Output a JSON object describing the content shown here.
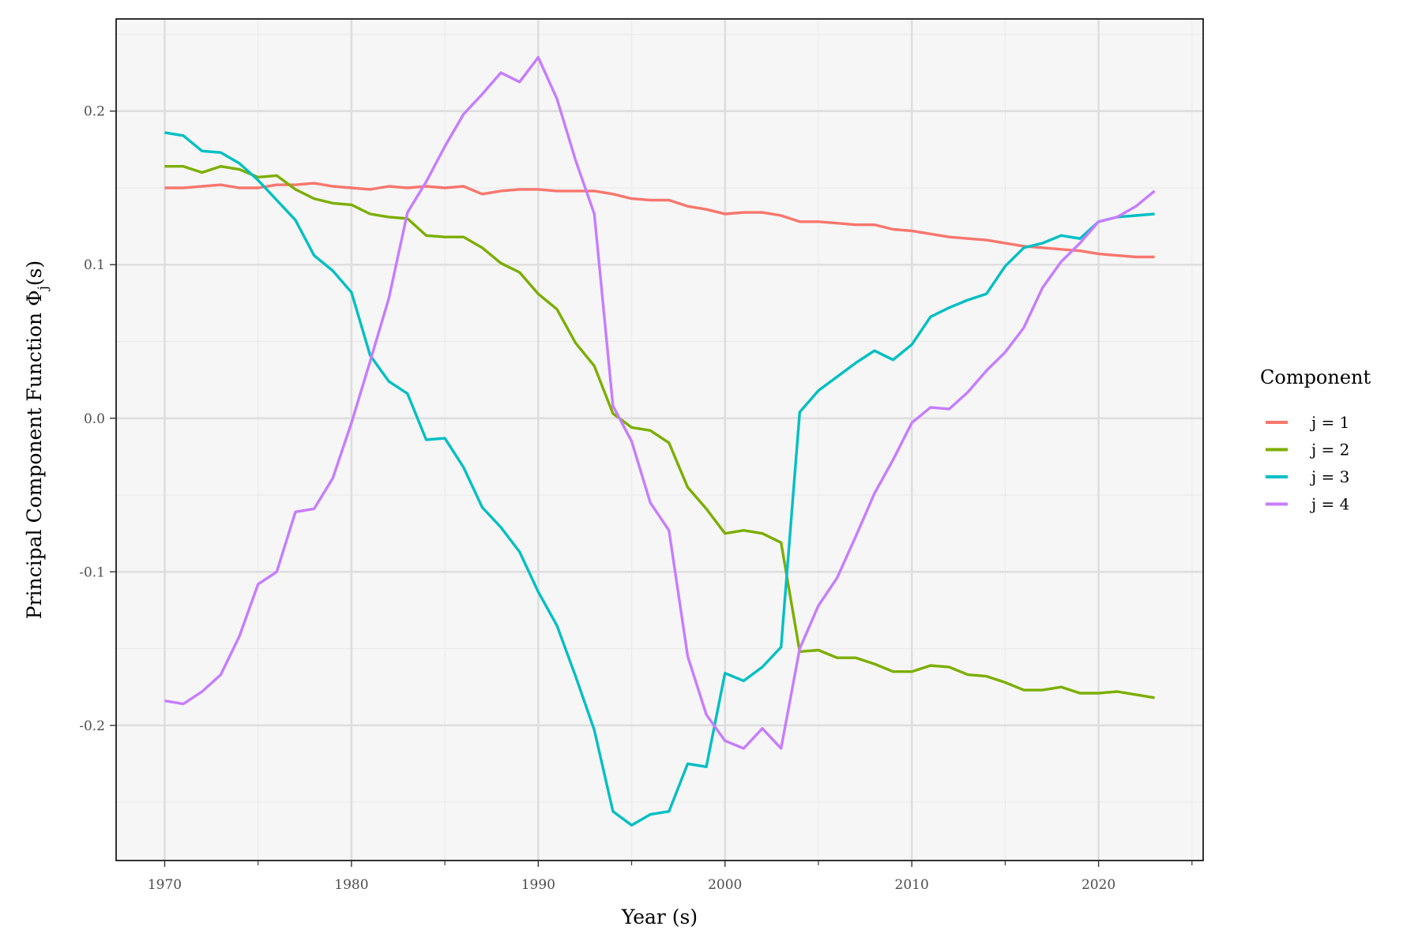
{
  "chart_data": {
    "type": "line",
    "xlabel": "Year (s)",
    "ylabel_main": "Principal Component Function  Φ",
    "ylabel_sub": "j",
    "ylabel_end": "(s)",
    "xlim": [
      1967.4,
      2025.6
    ],
    "ylim": [
      -0.288,
      0.26
    ],
    "x_ticks": [
      1970,
      1980,
      1990,
      2000,
      2010,
      2020
    ],
    "x_tick_labels": [
      "1970",
      "1980",
      "1990",
      "2000",
      "2010",
      "2020"
    ],
    "y_ticks": [
      -0.2,
      -0.1,
      0.0,
      0.1,
      0.2
    ],
    "y_tick_labels": [
      "-0.2",
      "-0.1",
      "0.0",
      "0.1",
      "0.2"
    ],
    "grid": true,
    "legend": {
      "title": "Component",
      "position": "right"
    },
    "x": [
      1970,
      1971,
      1972,
      1973,
      1974,
      1975,
      1976,
      1977,
      1978,
      1979,
      1980,
      1981,
      1982,
      1983,
      1984,
      1985,
      1986,
      1987,
      1988,
      1989,
      1990,
      1991,
      1992,
      1993,
      1994,
      1995,
      1996,
      1997,
      1998,
      1999,
      2000,
      2001,
      2002,
      2003,
      2004,
      2005,
      2006,
      2007,
      2008,
      2009,
      2010,
      2011,
      2012,
      2013,
      2014,
      2015,
      2016,
      2017,
      2018,
      2019,
      2020,
      2021,
      2022,
      2023
    ],
    "series": [
      {
        "name": "j = 1",
        "color": "#F8766D",
        "values": [
          0.15,
          0.15,
          0.151,
          0.152,
          0.15,
          0.15,
          0.152,
          0.152,
          0.153,
          0.151,
          0.15,
          0.149,
          0.151,
          0.15,
          0.151,
          0.15,
          0.151,
          0.146,
          0.148,
          0.149,
          0.149,
          0.148,
          0.148,
          0.148,
          0.146,
          0.143,
          0.142,
          0.142,
          0.138,
          0.136,
          0.133,
          0.134,
          0.134,
          0.132,
          0.128,
          0.128,
          0.127,
          0.126,
          0.126,
          0.123,
          0.122,
          0.12,
          0.118,
          0.117,
          0.116,
          0.114,
          0.112,
          0.111,
          0.11,
          0.109,
          0.107,
          0.106,
          0.105,
          0.105
        ]
      },
      {
        "name": "j = 2",
        "color": "#7CAE00",
        "values": [
          0.164,
          0.164,
          0.16,
          0.164,
          0.162,
          0.157,
          0.158,
          0.149,
          0.143,
          0.14,
          0.139,
          0.133,
          0.131,
          0.13,
          0.119,
          0.118,
          0.118,
          0.111,
          0.101,
          0.095,
          0.081,
          0.071,
          0.049,
          0.034,
          0.003,
          -0.006,
          -0.008,
          -0.016,
          -0.045,
          -0.059,
          -0.075,
          -0.073,
          -0.075,
          -0.081,
          -0.152,
          -0.151,
          -0.156,
          -0.156,
          -0.16,
          -0.165,
          -0.165,
          -0.161,
          -0.162,
          -0.167,
          -0.168,
          -0.172,
          -0.177,
          -0.177,
          -0.175,
          -0.179,
          -0.179,
          -0.178,
          -0.18,
          -0.182
        ]
      },
      {
        "name": "j = 3",
        "color": "#00BFC4",
        "values": [
          0.186,
          0.184,
          0.174,
          0.173,
          0.166,
          0.155,
          0.142,
          0.129,
          0.106,
          0.096,
          0.082,
          0.041,
          0.024,
          0.016,
          -0.014,
          -0.013,
          -0.032,
          -0.058,
          -0.071,
          -0.087,
          -0.113,
          -0.135,
          -0.168,
          -0.203,
          -0.256,
          -0.265,
          -0.258,
          -0.256,
          -0.225,
          -0.227,
          -0.166,
          -0.171,
          -0.162,
          -0.149,
          0.004,
          0.018,
          0.027,
          0.036,
          0.044,
          0.038,
          0.048,
          0.066,
          0.072,
          0.077,
          0.081,
          0.099,
          0.111,
          0.114,
          0.119,
          0.117,
          0.128,
          0.131,
          0.132,
          0.133
        ]
      },
      {
        "name": "j = 4",
        "color": "#C77CFF",
        "values": [
          -0.184,
          -0.186,
          -0.178,
          -0.167,
          -0.142,
          -0.108,
          -0.1,
          -0.061,
          -0.059,
          -0.039,
          -0.003,
          0.037,
          0.078,
          0.134,
          0.154,
          0.177,
          0.198,
          0.211,
          0.225,
          0.219,
          0.235,
          0.208,
          0.168,
          0.133,
          0.008,
          -0.015,
          -0.055,
          -0.073,
          -0.155,
          -0.193,
          -0.21,
          -0.215,
          -0.202,
          -0.215,
          -0.15,
          -0.122,
          -0.104,
          -0.077,
          -0.049,
          -0.027,
          -0.003,
          0.007,
          0.006,
          0.017,
          0.031,
          0.043,
          0.059,
          0.085,
          0.102,
          0.114,
          0.128,
          0.131,
          0.138,
          0.148
        ]
      }
    ]
  }
}
